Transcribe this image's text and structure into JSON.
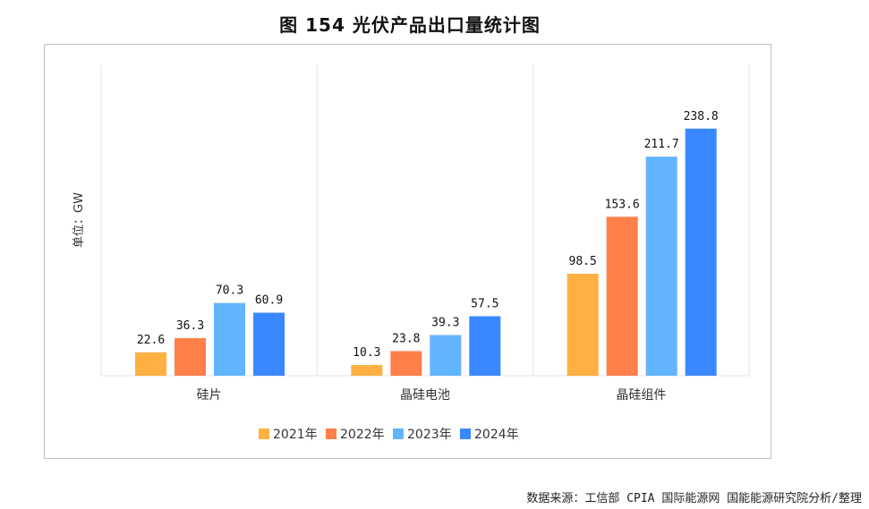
{
  "title": "图 154 光伏产品出口量统计图",
  "source": "数据来源：工信部 CPIA 国际能源网 国能能源研究院分析/整理",
  "chart_data": {
    "type": "bar",
    "title": "图 154 光伏产品出口量统计图",
    "ylabel": "单位：GW",
    "xlabel": "",
    "categories": [
      "硅片",
      "晶硅电池",
      "晶硅组件"
    ],
    "series": [
      {
        "name": "2021年",
        "color": "#FFB042",
        "values": [
          22.6,
          10.3,
          98.5
        ]
      },
      {
        "name": "2022年",
        "color": "#FF7F4A",
        "values": [
          36.3,
          23.8,
          153.6
        ]
      },
      {
        "name": "2023年",
        "color": "#62B4FF",
        "values": [
          70.3,
          39.3,
          211.7
        ]
      },
      {
        "name": "2024年",
        "color": "#3A88FF",
        "values": [
          60.9,
          57.5,
          238.8
        ]
      }
    ],
    "ylim": [
      0,
      300
    ],
    "grid": false,
    "legend": "bottom"
  }
}
